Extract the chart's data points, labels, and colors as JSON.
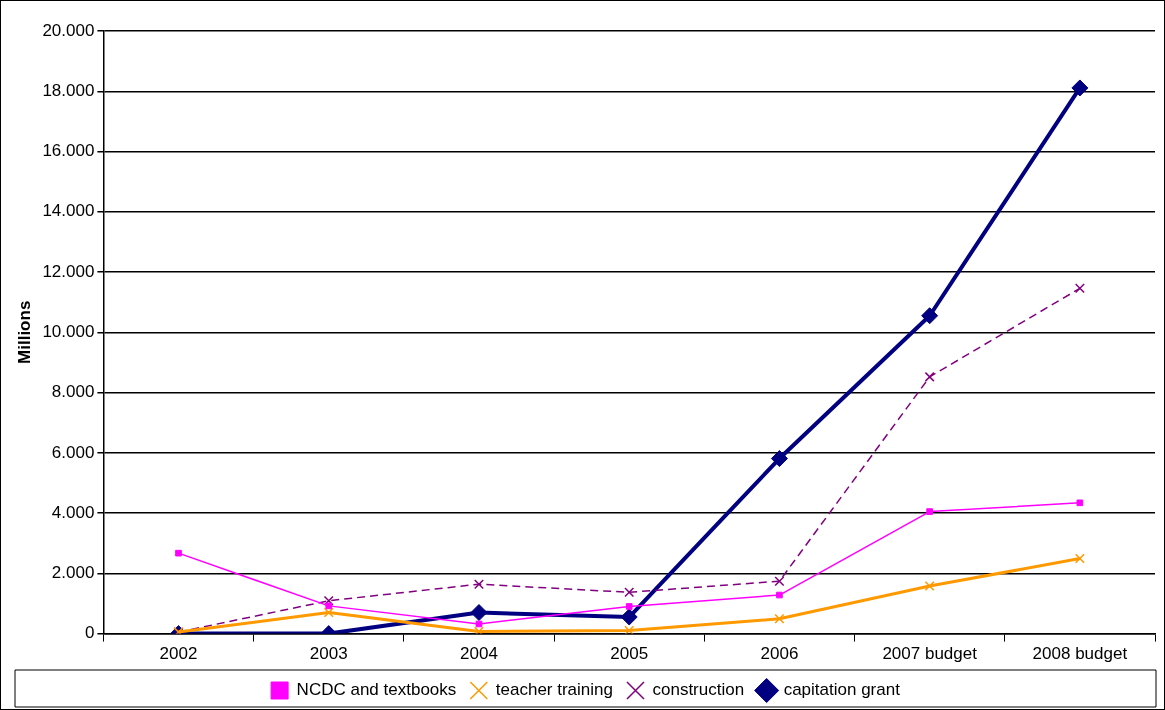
{
  "chart_data": {
    "type": "line",
    "ylabel": "Millions",
    "categories": [
      "2002",
      "2003",
      "2004",
      "2005",
      "2006",
      "2007 budget",
      "2008 budget"
    ],
    "series": [
      {
        "name": "NCDC and textbooks",
        "color": "#ff00ff",
        "marker": "square",
        "line_style": "solid",
        "values": [
          2670,
          920,
          320,
          900,
          1280,
          4050,
          4340
        ]
      },
      {
        "name": "teacher training",
        "color": "#ff9900",
        "marker": "cross",
        "line_style": "solid",
        "values": [
          50,
          700,
          70,
          100,
          490,
          1580,
          2490
        ]
      },
      {
        "name": "construction",
        "color": "#800080",
        "marker": "cross",
        "line_style": "dashed",
        "values": [
          50,
          1090,
          1640,
          1370,
          1740,
          8520,
          11460
        ]
      },
      {
        "name": "capitation grant",
        "color": "#000080",
        "marker": "diamond",
        "line_style": "solid",
        "values": [
          0,
          0,
          700,
          550,
          5810,
          10550,
          18110
        ]
      }
    ],
    "ylim": [
      0,
      20000
    ],
    "yticks": [
      0,
      {
        "value": 2000,
        "label": "2.000"
      },
      {
        "value": 4000,
        "label": "4.000"
      },
      {
        "value": 6000,
        "label": "6.000"
      },
      {
        "value": 8000,
        "label": "8.000"
      },
      {
        "value": 10000,
        "label": "10.000"
      },
      {
        "value": 12000,
        "label": "12.000"
      },
      {
        "value": 14000,
        "label": "14.000"
      },
      {
        "value": 16000,
        "label": "16.000"
      },
      {
        "value": 18000,
        "label": "18.000"
      },
      {
        "value": 20000,
        "label": "20.000"
      }
    ],
    "grid": "y",
    "legend": "bottom"
  }
}
